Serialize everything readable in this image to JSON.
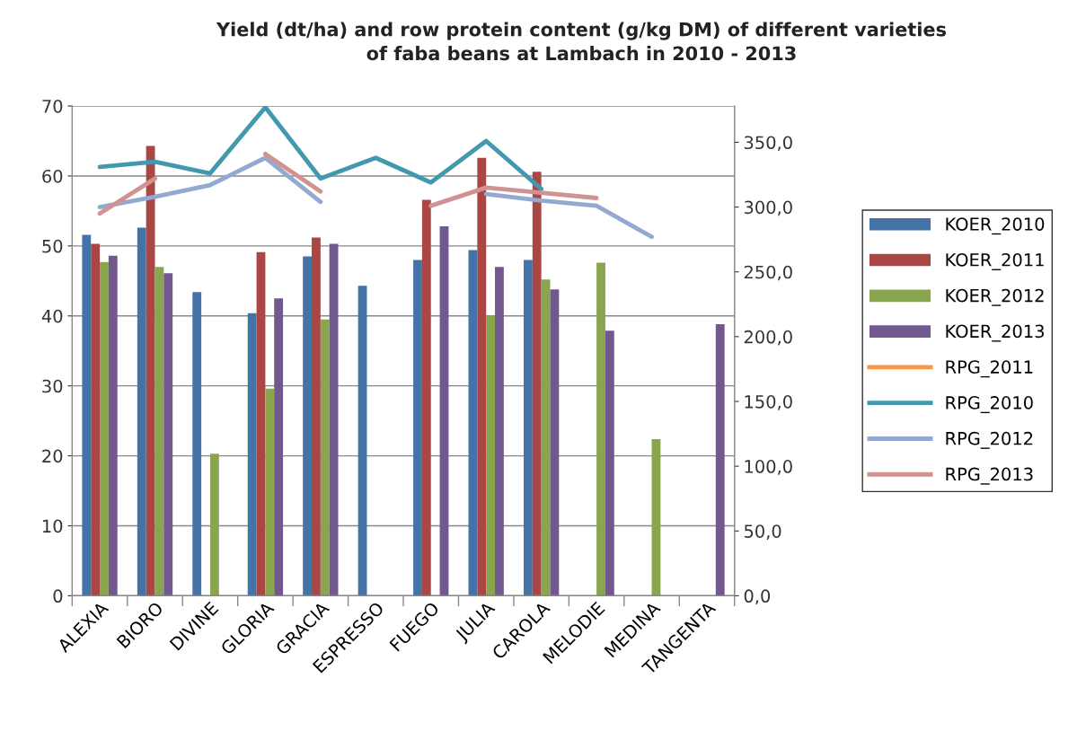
{
  "chart_data": {
    "type": "bar",
    "title": "Yield (dt/ha) and row protein content (g/kg DM) of different varieties\nof faba beans at Lambach in 2010 - 2013",
    "categories": [
      "ALEXIA",
      "BIORO",
      "DIVINE",
      "GLORIA",
      "GRACIA",
      "ESPRESSO",
      "FUEGO",
      "JULIA",
      "CAROLA",
      "MELODIE",
      "MEDINA",
      "TANGENTA"
    ],
    "series": [
      {
        "name": "KOER_2010",
        "color": "#4572a7",
        "values": [
          51.6,
          52.6,
          43.4,
          40.4,
          48.5,
          44.3,
          48.0,
          49.4,
          48.0,
          null,
          null,
          null
        ]
      },
      {
        "name": "KOER_2011",
        "color": "#aa4643",
        "values": [
          50.3,
          64.3,
          null,
          49.1,
          51.2,
          null,
          56.6,
          62.6,
          60.6,
          null,
          null,
          null
        ]
      },
      {
        "name": "KOER_2012",
        "color": "#89a54e",
        "values": [
          47.7,
          47.0,
          20.3,
          29.6,
          39.5,
          null,
          null,
          40.0,
          45.2,
          47.6,
          22.4,
          null
        ]
      },
      {
        "name": "KOER_2013",
        "color": "#71588f",
        "values": [
          48.6,
          46.1,
          null,
          42.5,
          50.3,
          null,
          52.8,
          47.0,
          43.8,
          37.9,
          null,
          38.8
        ]
      },
      {
        "name": "RPG_2011",
        "color": "#f79646",
        "type": "line",
        "axis": "y2",
        "values": [
          null,
          null,
          null,
          null,
          null,
          null,
          null,
          null,
          null,
          null,
          null,
          null
        ]
      },
      {
        "name": "RPG_2010",
        "color": "#4198af",
        "type": "line",
        "axis": "y2",
        "values": [
          331,
          335,
          326,
          377,
          322,
          338,
          319,
          351,
          314,
          null,
          null,
          null
        ]
      },
      {
        "name": "RPG_2012",
        "color": "#93a9cf",
        "type": "line",
        "axis": "y2",
        "values": [
          300,
          308,
          317,
          338,
          304,
          null,
          null,
          310,
          305,
          301,
          277,
          null
        ]
      },
      {
        "name": "RPG_2013",
        "color": "#d19392",
        "type": "line",
        "axis": "y2",
        "values": [
          295,
          322,
          null,
          341,
          312,
          null,
          301,
          315,
          311,
          307,
          null,
          null
        ]
      }
    ],
    "ylim": [
      0,
      70
    ],
    "yticks": [
      0,
      10,
      20,
      30,
      40,
      50,
      60,
      70
    ],
    "y2lim": [
      0,
      378
    ],
    "y2ticks": [
      {
        "value": 0,
        "label": "0,0"
      },
      {
        "value": 50,
        "label": "50,0"
      },
      {
        "value": 100,
        "label": "100,0"
      },
      {
        "value": 150,
        "label": "150,0"
      },
      {
        "value": 200,
        "label": "200,0"
      },
      {
        "value": 250,
        "label": "250,0"
      },
      {
        "value": 300,
        "label": "300,0"
      },
      {
        "value": 350,
        "label": "350,0"
      }
    ],
    "grid": "y",
    "legend": "right",
    "line_style": "solid",
    "marker": "none"
  }
}
